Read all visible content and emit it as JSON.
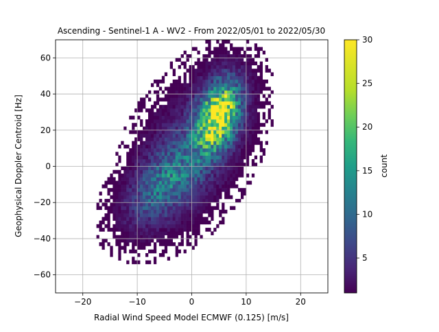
{
  "chart_data": {
    "type": "heatmap",
    "title": "Ascending - Sentinel-1 A - WV2 - From 2022/05/01 to 2022/05/30",
    "xlabel": "Radial Wind Speed Model ECMWF (0.125) [m/s]",
    "ylabel": "Geophysical Doppler Centroid [Hz]",
    "xlim": [
      -25,
      25
    ],
    "ylim": [
      -70,
      70
    ],
    "x_ticks": [
      -20,
      -10,
      0,
      10,
      20
    ],
    "y_ticks": [
      -60,
      -40,
      -20,
      0,
      20,
      40,
      60
    ],
    "grid": true,
    "bin_width_x": 0.5,
    "bin_width_y": 2,
    "colorbar": {
      "label": "count",
      "min": 1,
      "max": 30,
      "ticks": [
        5,
        10,
        15,
        20,
        25,
        30
      ],
      "colormap": "viridis"
    },
    "density_model": {
      "description_of_distribution": "cluster",
      "components": [
        {
          "x_center": 5,
          "y_center": 28,
          "x_spread": 2.6,
          "y_spread": 12,
          "peak_count": 29
        },
        {
          "x_center": -5,
          "y_center": -10,
          "x_spread": 4.5,
          "y_spread": 12,
          "peak_count": 10
        },
        {
          "x_center": 0,
          "y_center": 10,
          "x_spread": 6,
          "y_spread": 22,
          "peak_count": 6
        }
      ],
      "correlation_slope": 3.2
    }
  }
}
